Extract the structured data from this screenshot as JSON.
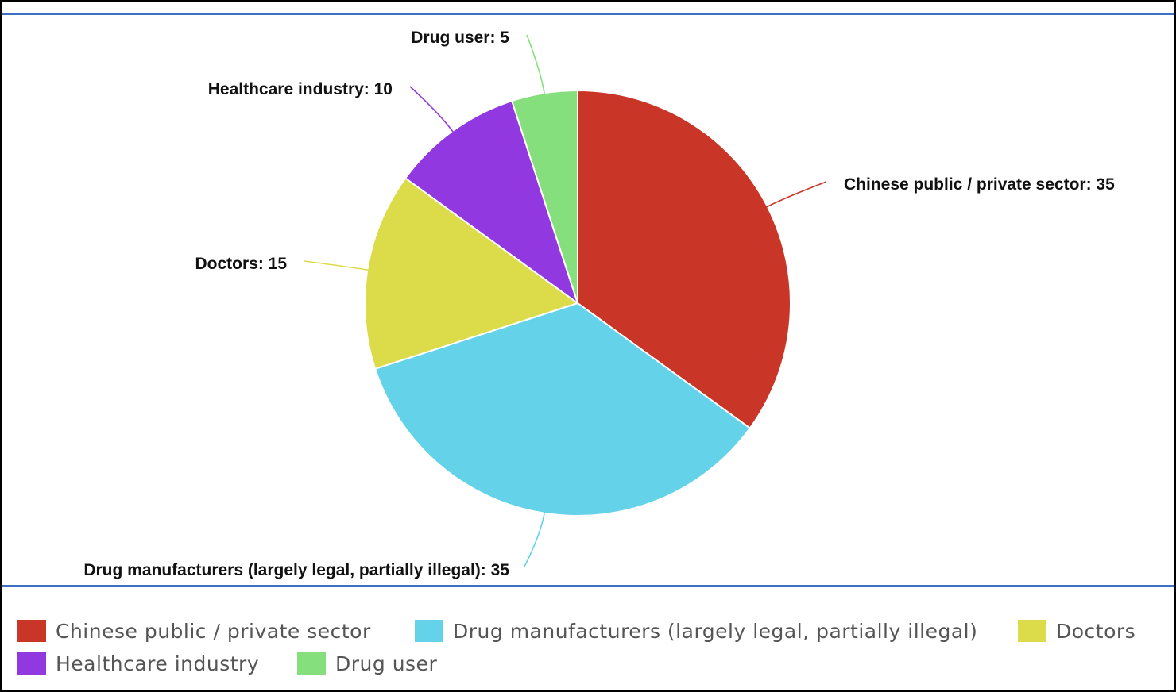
{
  "chart_data": {
    "type": "pie",
    "categories": [
      "Chinese public / private sector",
      "Drug manufacturers (largely legal, partially illegal)",
      "Doctors",
      "Healthcare industry",
      "Drug user"
    ],
    "values": [
      35,
      35,
      15,
      10,
      5
    ],
    "colors": [
      "#c93526",
      "#64d2e8",
      "#dcdc4a",
      "#9238e0",
      "#86df7d"
    ],
    "data_labels": [
      "Chinese public / private sector: 35",
      "Drug manufacturers (largely legal, partially illegal): 35",
      "Doctors: 15",
      "Healthcare industry: 10",
      "Drug user: 5"
    ],
    "start": "12 o'clock",
    "direction": "clockwise",
    "legend": "bottom"
  },
  "colors": {
    "frame_border": "#000000",
    "rule": "#3b73c4",
    "slice_border": "#ffffff"
  }
}
